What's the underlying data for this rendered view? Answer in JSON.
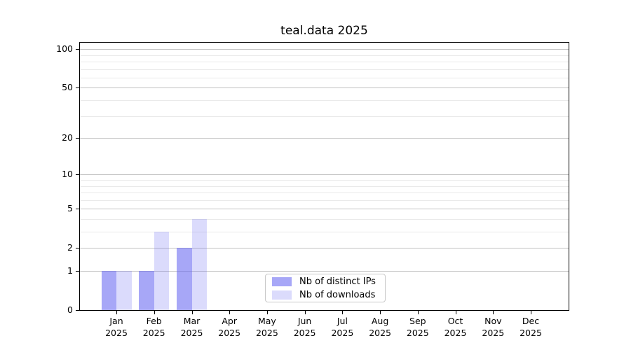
{
  "title": "teal.data 2025",
  "chart_data": {
    "type": "bar",
    "title": "teal.data 2025",
    "categories": [
      "Jan 2025",
      "Feb 2025",
      "Mar 2025",
      "Apr 2025",
      "May 2025",
      "Jun 2025",
      "Jul 2025",
      "Aug 2025",
      "Sep 2025",
      "Oct 2025",
      "Nov 2025",
      "Dec 2025"
    ],
    "x_tick_line1": [
      "Jan",
      "Feb",
      "Mar",
      "Apr",
      "May",
      "Jun",
      "Jul",
      "Aug",
      "Sep",
      "Oct",
      "Nov",
      "Dec"
    ],
    "x_tick_line2": "2025",
    "series": [
      {
        "name": "Nb of distinct IPs",
        "color": "rgba(95,95,240,0.55)",
        "values": [
          1,
          1,
          2,
          0,
          0,
          0,
          0,
          0,
          0,
          0,
          0,
          0
        ]
      },
      {
        "name": "Nb of downloads",
        "color": "rgba(95,95,240,0.225)",
        "values": [
          1,
          3,
          4,
          0,
          0,
          0,
          0,
          0,
          0,
          0,
          0,
          0
        ]
      }
    ],
    "yscale": "log10(1+y)",
    "ylim": [
      0,
      112
    ],
    "y_major_ticks": [
      0,
      1,
      2,
      5,
      10,
      20,
      50,
      100
    ],
    "y_minor_ticks": [
      3,
      4,
      6,
      7,
      8,
      9,
      30,
      40,
      60,
      70,
      80,
      90
    ],
    "grid": true,
    "legend_position": "lower center",
    "colors": {
      "bar_distinct_ips": "#a7a7f7",
      "bar_downloads": "#dbdbfa",
      "grid_major": "#c3c3c3",
      "grid_minor": "#eaeaea",
      "axis": "#000000",
      "legend_border": "#c9c9c9"
    }
  }
}
